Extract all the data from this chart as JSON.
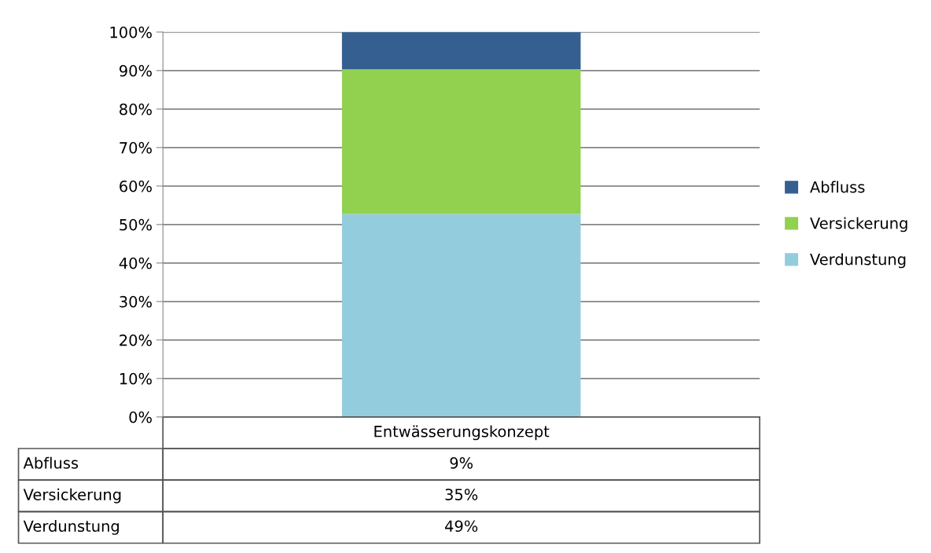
{
  "chart_data": {
    "type": "bar",
    "stacked": true,
    "categories": [
      "Entwässerungskonzept"
    ],
    "series": [
      {
        "name": "Verdunstung",
        "color": "#93cddd",
        "values": [
          52.7
        ]
      },
      {
        "name": "Versickerung",
        "color": "#92d050",
        "values": [
          37.6
        ]
      },
      {
        "name": "Abfluss",
        "color": "#355f91",
        "values": [
          9.7
        ]
      }
    ],
    "annotations": [
      "9%",
      "35%",
      "49%"
    ],
    "ylim": [
      0,
      100
    ],
    "yticks": [
      {
        "value": 0,
        "label": "0%"
      },
      {
        "value": 10,
        "label": "10%"
      },
      {
        "value": 20,
        "label": "20%"
      },
      {
        "value": 30,
        "label": "30%"
      },
      {
        "value": 40,
        "label": "40%"
      },
      {
        "value": 50,
        "label": "50%"
      },
      {
        "value": 60,
        "label": "60%"
      },
      {
        "value": 70,
        "label": "70%"
      },
      {
        "value": 80,
        "label": "80%"
      },
      {
        "value": 90,
        "label": "90%"
      },
      {
        "value": 100,
        "label": "100%"
      }
    ],
    "grid": "y",
    "legend": "right"
  }
}
